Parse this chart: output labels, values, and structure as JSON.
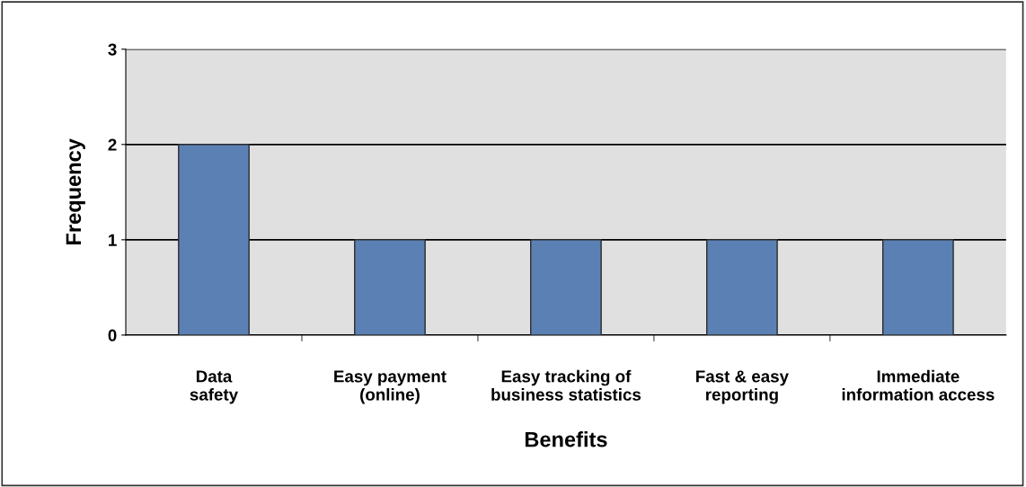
{
  "chart_data": {
    "type": "bar",
    "xlabel": "Benefits",
    "ylabel": "Frequency",
    "categories": [
      "Data\nsafety",
      "Easy payment\n(online)",
      "Easy tracking of\nbusiness statistics",
      "Fast & easy\nreporting",
      "Immediate\ninformation access"
    ],
    "values": [
      2,
      1,
      1,
      1,
      1
    ],
    "color": "#5b80b4",
    "ylim": [
      0,
      3
    ],
    "yticks": [
      0,
      1,
      2,
      3
    ],
    "grid": "y"
  }
}
